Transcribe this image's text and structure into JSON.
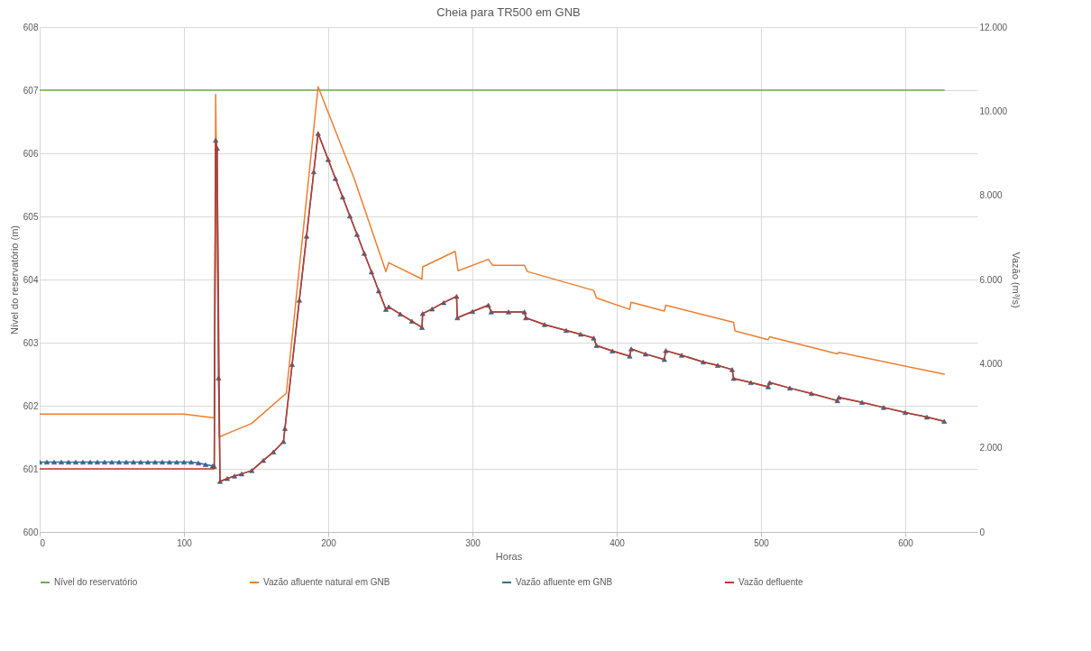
{
  "chart_data": {
    "type": "line",
    "title": "Cheia para TR500 em GNB",
    "xlabel": "Horas",
    "ylabel": "Nível do reservatório (m)",
    "y2label": "Vazão (m³/s)",
    "xlim": [
      0,
      650
    ],
    "xticks": [
      0,
      100,
      200,
      300,
      400,
      500,
      600
    ],
    "ylim": [
      600,
      608
    ],
    "yticks": [
      600,
      601,
      602,
      603,
      604,
      605,
      606,
      607,
      608
    ],
    "y2lim": [
      0,
      12000
    ],
    "y2ticks": [
      0,
      {
        "value": 2000,
        "label": "2.000"
      },
      {
        "value": 4000,
        "label": "4.000"
      },
      {
        "value": 6000,
        "label": "6.000"
      },
      {
        "value": 8000,
        "label": "8.000"
      },
      {
        "value": 10000,
        "label": "10.000"
      },
      {
        "value": 12000,
        "label": "12.000"
      }
    ],
    "grid": true,
    "legend": "bottom",
    "series": [
      {
        "name": "Nível do reservatório",
        "color": "#70ad47",
        "x": [
          0,
          627
        ],
        "values": [
          607,
          607
        ]
      },
      {
        "name": "Vazão afluente natural em GNB",
        "color": "#ed7d31",
        "axis": "y2",
        "x": [
          0,
          100,
          121,
          122,
          124.5,
          147,
          171,
          193,
          218,
          240,
          242,
          265,
          265.5,
          288,
          290,
          311,
          314,
          336,
          338,
          384,
          386,
          409,
          410,
          433,
          434,
          481,
          482,
          505,
          506,
          553,
          554,
          627
        ],
        "values": [
          2800,
          2800,
          2710,
          10400,
          2260,
          2580,
          3300,
          10580,
          8400,
          6190,
          6400,
          6010,
          6300,
          6670,
          6210,
          6480,
          6340,
          6340,
          6190,
          5740,
          5560,
          5290,
          5460,
          5250,
          5390,
          4980,
          4780,
          4570,
          4640,
          4230,
          4270,
          3750
        ]
      },
      {
        "name": "Vazão afluente em GNB",
        "color": "#2e6f95",
        "axis": "y2",
        "marker": "triangle",
        "x": [
          0,
          5,
          10,
          15,
          20,
          25,
          30,
          35,
          40,
          45,
          50,
          55,
          60,
          65,
          70,
          75,
          80,
          85,
          90,
          95,
          100,
          105,
          110,
          115,
          120,
          121,
          122,
          123,
          124,
          125,
          130,
          135,
          140,
          147,
          155,
          162,
          169,
          170,
          175,
          180,
          185,
          190,
          193,
          200,
          205,
          210,
          215,
          220,
          225,
          230,
          235,
          240,
          242,
          250,
          258,
          265,
          265.5,
          272,
          280,
          289,
          289.5,
          300,
          311,
          313,
          325,
          336,
          337,
          350,
          365,
          375,
          384,
          386,
          397,
          409,
          410,
          420,
          433,
          434,
          445,
          460,
          470,
          480,
          481,
          493,
          505,
          506,
          520,
          535,
          553,
          554,
          570,
          585,
          600,
          615,
          627
        ],
        "values": [
          1660,
          1660,
          1660,
          1660,
          1660,
          1660,
          1660,
          1660,
          1660,
          1660,
          1660,
          1660,
          1660,
          1660,
          1660,
          1660,
          1660,
          1660,
          1660,
          1660,
          1660,
          1660,
          1640,
          1600,
          1570,
          1560,
          9310,
          9120,
          3660,
          1200,
          1270,
          1330,
          1380,
          1460,
          1700,
          1900,
          2150,
          2460,
          3980,
          5510,
          7030,
          8560,
          9470,
          8850,
          8400,
          7960,
          7510,
          7070,
          6620,
          6180,
          5730,
          5290,
          5350,
          5180,
          5010,
          4860,
          5190,
          5300,
          5450,
          5600,
          5090,
          5240,
          5390,
          5230,
          5230,
          5230,
          5090,
          4930,
          4790,
          4700,
          4610,
          4430,
          4300,
          4180,
          4350,
          4230,
          4100,
          4310,
          4200,
          4040,
          3960,
          3860,
          3650,
          3550,
          3450,
          3550,
          3420,
          3290,
          3120,
          3200,
          3080,
          2960,
          2840,
          2730,
          2630
        ]
      },
      {
        "name": "Vazão defluente",
        "color": "#c0392b",
        "axis": "y2",
        "x": [
          0,
          121,
          122,
          123,
          125,
          130,
          135,
          140,
          147,
          155,
          162,
          169,
          170,
          175,
          180,
          185,
          190,
          193,
          200,
          205,
          210,
          215,
          220,
          225,
          230,
          235,
          240,
          242,
          250,
          258,
          265,
          265.5,
          272,
          280,
          289,
          289.5,
          300,
          311,
          313,
          325,
          336,
          337,
          350,
          365,
          375,
          384,
          386,
          397,
          409,
          410,
          420,
          433,
          434,
          445,
          460,
          470,
          480,
          481,
          493,
          505,
          506,
          520,
          535,
          553,
          554,
          570,
          585,
          600,
          615,
          627
        ],
        "values": [
          1500,
          1500,
          9310,
          9120,
          1200,
          1270,
          1330,
          1380,
          1460,
          1700,
          1900,
          2150,
          2460,
          3980,
          5510,
          7030,
          8560,
          9470,
          8850,
          8400,
          7960,
          7510,
          7070,
          6620,
          6180,
          5730,
          5290,
          5350,
          5180,
          5010,
          4860,
          5190,
          5300,
          5450,
          5600,
          5090,
          5240,
          5390,
          5230,
          5230,
          5230,
          5090,
          4930,
          4790,
          4700,
          4610,
          4430,
          4300,
          4180,
          4350,
          4230,
          4100,
          4310,
          4200,
          4040,
          3960,
          3860,
          3650,
          3550,
          3450,
          3550,
          3420,
          3290,
          3120,
          3200,
          3080,
          2960,
          2840,
          2730,
          2630
        ]
      }
    ]
  }
}
